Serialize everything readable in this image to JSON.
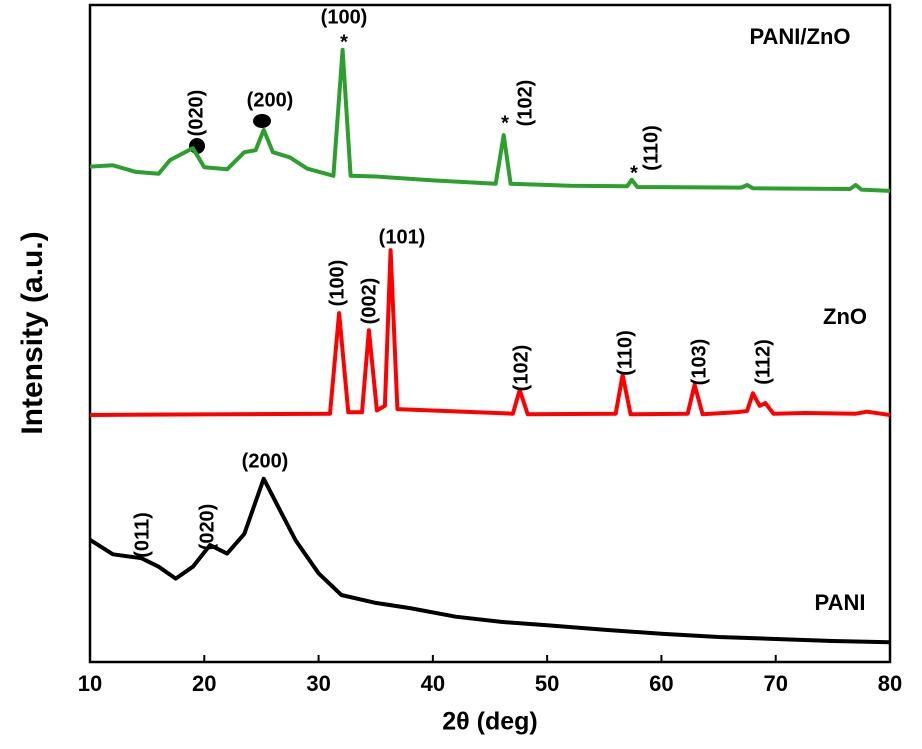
{
  "chart_data": {
    "type": "line",
    "x_label": "2θ (deg)",
    "y_label": "Intensity (a.u.)",
    "xlim": [
      10,
      80
    ],
    "xticks": [
      10,
      20,
      30,
      40,
      50,
      60,
      70,
      80
    ],
    "ylim": [
      0,
      100
    ],
    "series": [
      {
        "name": "PANI/ZnO",
        "color": "#2ca02c",
        "x": [
          10,
          12,
          14,
          16,
          17,
          18,
          19,
          20,
          22,
          23.5,
          24.5,
          25.2,
          26,
          27.5,
          29,
          31.3,
          32.1,
          32.8,
          35,
          40,
          45.5,
          46.2,
          46.8,
          52,
          57,
          57.4,
          57.9,
          67,
          67.5,
          68,
          76.5,
          77,
          77.5,
          80
        ],
        "values": [
          75.4,
          75.6,
          74.6,
          74.3,
          76.4,
          77.3,
          78.2,
          75.3,
          75.0,
          77.6,
          77.9,
          81.0,
          77.6,
          76.8,
          75.1,
          74.0,
          93.2,
          74.0,
          73.9,
          73.3,
          72.8,
          80.2,
          72.8,
          72.5,
          72.4,
          73.4,
          72.3,
          72.2,
          72.6,
          72.1,
          72.0,
          72.6,
          71.9,
          71.7
        ],
        "annotations": [
          "(020)",
          "(200)",
          "(100)",
          "*",
          "*",
          "(102)",
          "*",
          "(110)"
        ]
      },
      {
        "name": "ZnO",
        "color": "#ff0000",
        "x": [
          10,
          31,
          31.8,
          32.6,
          33.8,
          34.4,
          35.1,
          35.8,
          36.3,
          36.9,
          47,
          47.6,
          48.3,
          56,
          56.6,
          57.3,
          62.3,
          62.9,
          63.6,
          66.5,
          67.5,
          68,
          68.6,
          69.1,
          69.8,
          72.6,
          77,
          78,
          80
        ],
        "values": [
          37.6,
          37.8,
          53.1,
          38.0,
          38.0,
          50.5,
          38.3,
          39.0,
          62.7,
          38.5,
          37.8,
          41.4,
          37.7,
          37.8,
          43.7,
          37.7,
          37.8,
          42.2,
          37.7,
          38.0,
          38.2,
          40.9,
          39.0,
          39.4,
          37.8,
          37.9,
          37.8,
          38.1,
          37.6
        ],
        "annotations": [
          "(100)",
          "(002)",
          "(101)",
          "(102)",
          "(110)",
          "(103)",
          "(112)"
        ]
      },
      {
        "name": "PANI",
        "color": "#000000",
        "x": [
          10,
          12,
          14.5,
          16,
          17.5,
          19,
          20.5,
          22,
          23.5,
          25.2,
          26.5,
          28,
          30,
          32,
          35,
          38,
          42,
          46,
          50,
          55,
          60,
          65,
          70,
          75,
          80
        ],
        "values": [
          18.6,
          16.4,
          15.8,
          14.5,
          12.7,
          14.5,
          17.8,
          16.5,
          19.5,
          27.9,
          23.5,
          18.5,
          13.5,
          10.2,
          9.0,
          8.2,
          6.9,
          6.1,
          5.6,
          4.9,
          4.3,
          3.8,
          3.5,
          3.2,
          3.0
        ],
        "annotations": [
          "(011)",
          "(020)",
          "(200)"
        ]
      }
    ]
  }
}
